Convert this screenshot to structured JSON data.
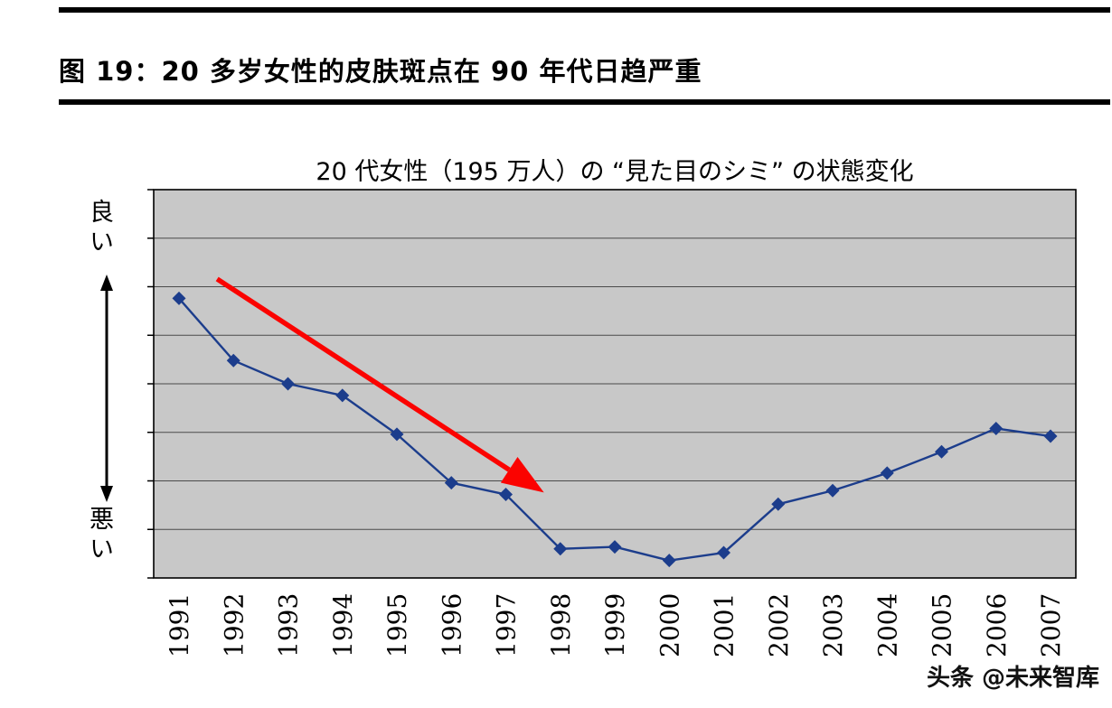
{
  "header": {
    "figure_title": "图 19：20 多岁女性的皮肤斑点在 90 年代日趋严重"
  },
  "watermark": {
    "text": "头条 @未来智库"
  },
  "chart_data": {
    "type": "line",
    "title": "20 代女性（195 万人）の “見た目のシミ” の状態変化",
    "categories": [
      "1991",
      "1992",
      "1993",
      "1994",
      "1995",
      "1996",
      "1997",
      "1998",
      "1999",
      "2000",
      "2001",
      "2002",
      "2003",
      "2004",
      "2005",
      "2006",
      "2007"
    ],
    "values": [
      72,
      56,
      50,
      47,
      37,
      24.5,
      21.5,
      7.5,
      8,
      4.5,
      6.5,
      19,
      22.5,
      27,
      32.5,
      38.5,
      36.5
    ],
    "ylabel_top": "良い",
    "ylabel_bottom": "悪い",
    "xlabel": "",
    "ylim": [
      0,
      100
    ],
    "y_axis_numeric_labels_shown": false,
    "h_gridline_intervals": 8,
    "grid": "horizontal",
    "legend": "none",
    "marker": "diamond",
    "colors": {
      "line": "#1c3d8c",
      "marker": "#1c3d8c",
      "plot_bg": "#c8c8c8",
      "gridline": "#4a4a4a",
      "axis": "#000000",
      "annotation_arrow": "#fb0300"
    },
    "annotation": {
      "type": "trend-arrow",
      "direction": "down-right",
      "from": {
        "year": 1991.7,
        "value": 77
      },
      "to": {
        "year": 1997.7,
        "value": 22
      }
    }
  }
}
